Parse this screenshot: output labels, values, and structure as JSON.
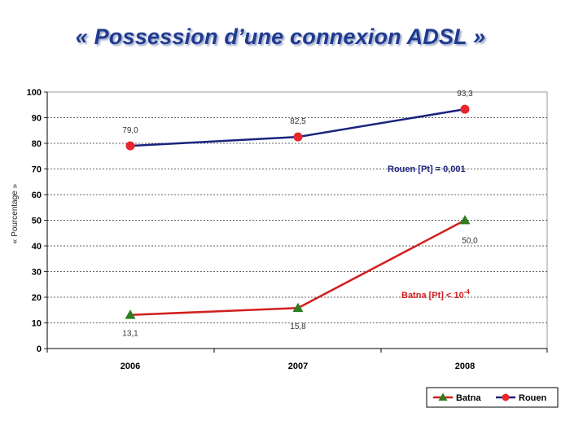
{
  "slide": {
    "title": "« Possession d’une connexion ADSL »"
  },
  "chart_data": {
    "type": "line",
    "categories": [
      "2006",
      "2007",
      "2008"
    ],
    "ylabel": "« Pourcentage »",
    "ylim": [
      0,
      100
    ],
    "yticks": [
      0,
      10,
      20,
      30,
      40,
      50,
      60,
      70,
      80,
      90,
      100
    ],
    "grid": true,
    "legend_position": "bottom-right",
    "series": [
      {
        "name": "Batna",
        "values": [
          13.1,
          15.8,
          50.0
        ],
        "data_labels": [
          "13,1",
          "15,8",
          "50,0"
        ],
        "color": "#d11f1f",
        "marker": "triangle",
        "marker_color": "#2e7d1f"
      },
      {
        "name": "Rouen",
        "values": [
          79.0,
          82.5,
          93.3
        ],
        "data_labels": [
          "79,0",
          "82,5",
          "93,3"
        ],
        "color": "#1a237e",
        "marker": "circle",
        "marker_color": "#e8262b"
      }
    ],
    "annotations": [
      {
        "series": "Rouen",
        "text": "Rouen [Pt] = 0,001",
        "color": "#1a237e"
      },
      {
        "series": "Batna",
        "text": "Batna [Pt] < 10",
        "superscript": "-4",
        "color": "#d11f1f"
      }
    ]
  }
}
